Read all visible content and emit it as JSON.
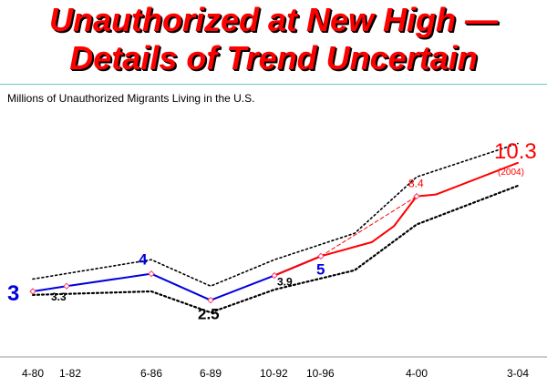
{
  "title_line1": "Unauthorized at New High —",
  "title_line2": "Details of Trend Uncertain",
  "colors": {
    "title": "#ff0000",
    "blue_series": "#0000dd",
    "red_series": "#ff0000",
    "markers": "#ff3366",
    "bounds": "#000000",
    "rule": "#66cccc"
  },
  "chart_data": {
    "type": "line",
    "title": "",
    "ylabel": "Millions of Unauthorized Migrants Living in the U.S.",
    "xlabel": "",
    "categories": [
      "4-80",
      "1-82",
      "6-86",
      "6-89",
      "10-92",
      "10-96",
      "4-00",
      "3-04"
    ],
    "ylim": [
      0,
      14
    ],
    "grid": false,
    "series": [
      {
        "style": "solid-blue",
        "x": [
          "4-80",
          "1-82",
          "6-86",
          "6-89",
          "10-92",
          "10-96"
        ],
        "y": [
          3,
          3.3,
          4,
          2.5,
          3.9,
          5
        ]
      },
      {
        "style": "solid-red",
        "x": [
          "10-92",
          "10-96",
          "4-00",
          "3-04"
        ],
        "y": [
          3.9,
          5,
          8.4,
          10.3
        ]
      },
      {
        "style": "dashed-red-trend",
        "x": [
          "10-96",
          "4-00"
        ],
        "y": [
          5,
          8.4
        ]
      },
      {
        "style": "dotted-upper-bound",
        "x": [
          "4-80",
          "6-86",
          "6-89",
          "10-92",
          "4-00",
          "3-04"
        ],
        "y": [
          3.7,
          4.8,
          3.3,
          4.8,
          9.5,
          11.4
        ]
      },
      {
        "style": "dotted-lower-bound",
        "x": [
          "4-80",
          "6-86",
          "6-89",
          "10-92",
          "4-00",
          "3-04"
        ],
        "y": [
          2.8,
          3,
          1.8,
          3.1,
          6.8,
          9
        ]
      }
    ],
    "annotations": [
      {
        "text": "3",
        "x": "4-80",
        "y": 3,
        "color": "#0000dd",
        "weight": "bold",
        "size": "large"
      },
      {
        "text": "3.3",
        "x": "1-82",
        "y": 3.3,
        "color": "#000000",
        "weight": "bold",
        "size": "small"
      },
      {
        "text": "4",
        "x": "6-86",
        "y": 4,
        "color": "#0000dd",
        "weight": "bold",
        "size": "medium"
      },
      {
        "text": "2.5",
        "x": "6-89",
        "y": 2.5,
        "color": "#000000",
        "weight": "bold",
        "size": "medium"
      },
      {
        "text": "3.9",
        "x": "10-92",
        "y": 3.9,
        "color": "#000000",
        "weight": "bold",
        "size": "small"
      },
      {
        "text": "5",
        "x": "10-96",
        "y": 5,
        "color": "#0000dd",
        "weight": "bold",
        "size": "medium"
      },
      {
        "text": "8.4",
        "x": "4-00",
        "y": 8.4,
        "color": "#ff0000",
        "weight": "normal",
        "size": "small"
      },
      {
        "text": "10.3",
        "x": "3-04",
        "y": 10.3,
        "color": "#ff0000",
        "weight": "normal",
        "size": "large"
      },
      {
        "text": "(2004)",
        "x": "3-04",
        "y": 10.3,
        "color": "#ff0000",
        "weight": "normal",
        "size": "tiny"
      }
    ]
  }
}
